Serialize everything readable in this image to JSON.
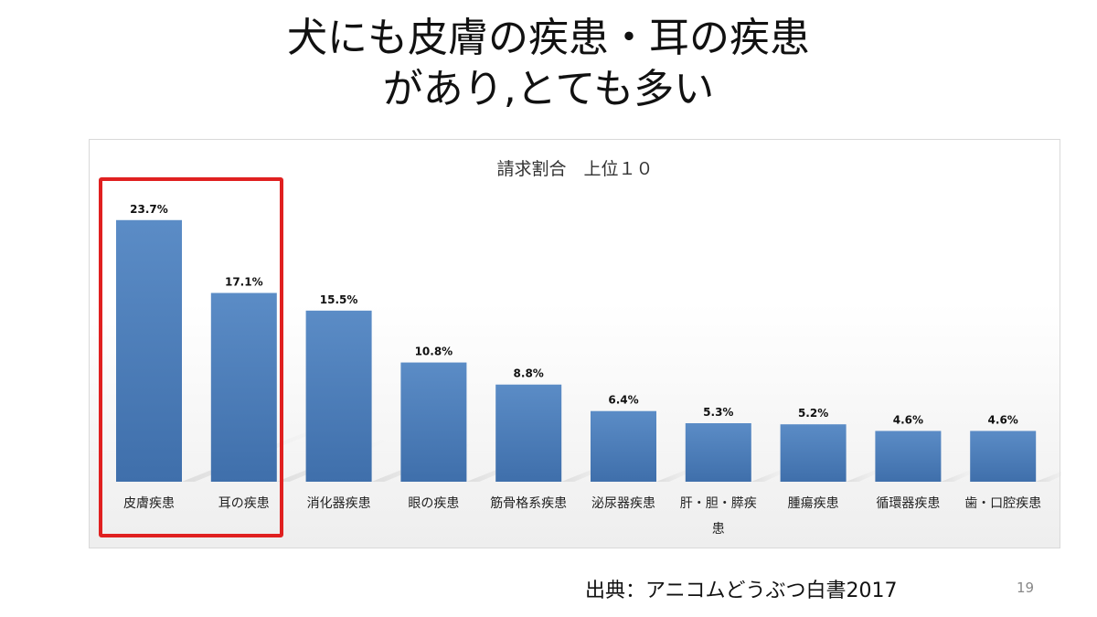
{
  "slide": {
    "title_line1": "犬にも皮膚の疾患・耳の疾患",
    "title_line2": "があり,とても多い",
    "source": "出典：アニコムどうぶつ白書2017",
    "page_number": "19"
  },
  "colors": {
    "bar": "#4f81bd",
    "bar_dark": "#3a6aa6",
    "highlight": "#e02020"
  },
  "chart_data": {
    "type": "bar",
    "title": "請求割合　上位１０",
    "categories": [
      "皮膚疾患",
      "耳の疾患",
      "消化器疾患",
      "眼の疾患",
      "筋骨格系疾患",
      "泌尿器疾患",
      "肝・胆・膵疾患",
      "腫瘍疾患",
      "循環器疾患",
      "歯・口腔疾患"
    ],
    "values": [
      23.7,
      17.1,
      15.5,
      10.8,
      8.8,
      6.4,
      5.3,
      5.2,
      4.6,
      4.6
    ],
    "data_labels": [
      "23.7%",
      "17.1%",
      "15.5%",
      "10.8%",
      "8.8%",
      "6.4%",
      "5.3%",
      "5.2%",
      "4.6%",
      "4.6%"
    ],
    "highlighted_categories": [
      "皮膚疾患",
      "耳の疾患"
    ],
    "ylim": [
      0,
      26
    ],
    "grid": false,
    "legend": "none"
  }
}
